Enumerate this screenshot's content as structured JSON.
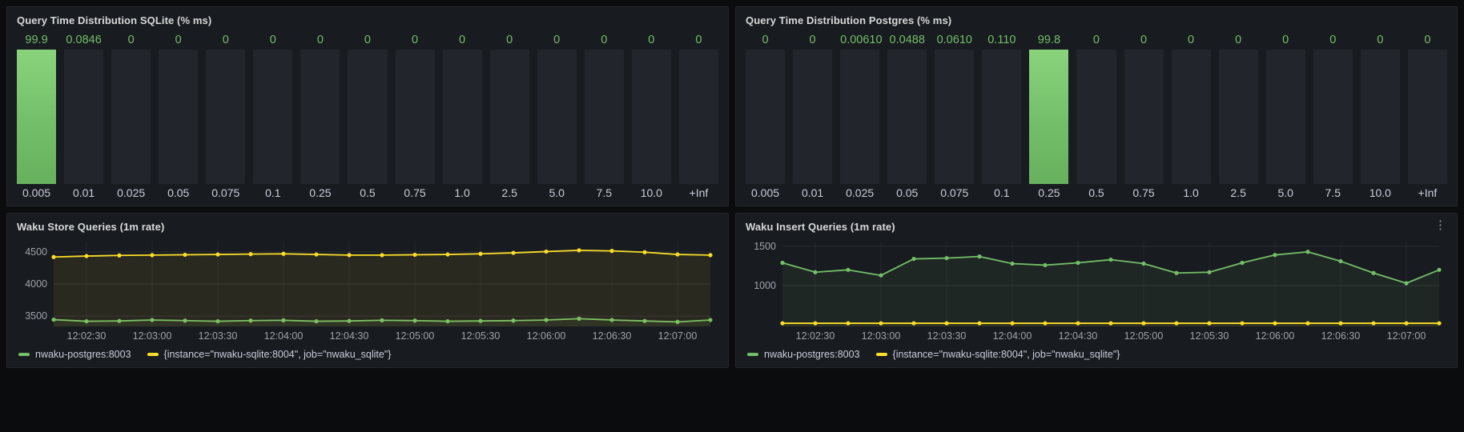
{
  "icons": {
    "kebab": "⋮"
  },
  "colors": {
    "green": "#73bf69",
    "yellow": "#fade2a",
    "page_bg": "#0b0c0e",
    "panel_bg": "#181b1f",
    "panel_border": "#25272e",
    "bar_track": "#22262c",
    "title_text": "#d8d9da",
    "axis_text": "#a0a4ab",
    "value_text": "#73bf69",
    "grid_line_h": "rgba(204,204,220,0.10)",
    "grid_line_v": "rgba(204,204,220,0.06)"
  },
  "chart_data": [
    {
      "id": "sqlite-hist",
      "type": "bar",
      "title": "Query Time Distribution SQLite (% ms)",
      "categories": [
        "0.005",
        "0.01",
        "0.025",
        "0.05",
        "0.075",
        "0.1",
        "0.25",
        "0.5",
        "0.75",
        "1.0",
        "2.5",
        "5.0",
        "7.5",
        "10.0",
        "+Inf"
      ],
      "values": [
        99.9,
        0.0846,
        0,
        0,
        0,
        0,
        0,
        0,
        0,
        0,
        0,
        0,
        0,
        0,
        0
      ],
      "value_labels": [
        "99.9",
        "0.0846",
        "0",
        "0",
        "0",
        "0",
        "0",
        "0",
        "0",
        "0",
        "0",
        "0",
        "0",
        "0",
        "0"
      ],
      "ylim": [
        0,
        100
      ],
      "bar_color": "green"
    },
    {
      "id": "postgres-hist",
      "type": "bar",
      "title": "Query Time Distribution Postgres (% ms)",
      "categories": [
        "0.005",
        "0.01",
        "0.025",
        "0.05",
        "0.075",
        "0.1",
        "0.25",
        "0.5",
        "0.75",
        "1.0",
        "2.5",
        "5.0",
        "7.5",
        "10.0",
        "+Inf"
      ],
      "values": [
        0,
        0,
        0.0061,
        0.0488,
        0.061,
        0.11,
        99.8,
        0,
        0,
        0,
        0,
        0,
        0,
        0,
        0
      ],
      "value_labels": [
        "0",
        "0",
        "0.00610",
        "0.0488",
        "0.0610",
        "0.110",
        "99.8",
        "0",
        "0",
        "0",
        "0",
        "0",
        "0",
        "0",
        "0"
      ],
      "ylim": [
        0,
        100
      ],
      "bar_color": "green"
    },
    {
      "id": "store-ts",
      "type": "line",
      "title": "Waku Store Queries (1m rate)",
      "t_step": 15,
      "x_ticks": [
        {
          "t": 15,
          "label": "12:02:30"
        },
        {
          "t": 45,
          "label": "12:03:00"
        },
        {
          "t": 75,
          "label": "12:03:30"
        },
        {
          "t": 105,
          "label": "12:04:00"
        },
        {
          "t": 135,
          "label": "12:04:30"
        },
        {
          "t": 165,
          "label": "12:05:00"
        },
        {
          "t": 195,
          "label": "12:05:30"
        },
        {
          "t": 225,
          "label": "12:06:00"
        },
        {
          "t": 255,
          "label": "12:06:30"
        },
        {
          "t": 285,
          "label": "12:07:00"
        }
      ],
      "y_ticks": [
        3500,
        4000,
        4500
      ],
      "ylim": [
        3340,
        4660
      ],
      "legend_position": "bottom",
      "series": [
        {
          "name": "nwaku-postgres:8003",
          "color": "green",
          "values": [
            3445,
            3420,
            3425,
            3440,
            3430,
            3420,
            3430,
            3435,
            3420,
            3425,
            3435,
            3430,
            3420,
            3425,
            3430,
            3440,
            3460,
            3440,
            3425,
            3410,
            3440
          ]
        },
        {
          "name": "{instance=\"nwaku-sqlite:8004\", job=\"nwaku_sqlite\"}",
          "color": "yellow",
          "values": [
            4420,
            4435,
            4445,
            4450,
            4455,
            4460,
            4465,
            4470,
            4460,
            4450,
            4450,
            4455,
            4460,
            4470,
            4485,
            4505,
            4525,
            4515,
            4495,
            4460,
            4450
          ]
        }
      ]
    },
    {
      "id": "insert-ts",
      "type": "line",
      "title": "Waku Insert Queries (1m rate)",
      "t_step": 15,
      "x_ticks": [
        {
          "t": 15,
          "label": "12:02:30"
        },
        {
          "t": 45,
          "label": "12:03:00"
        },
        {
          "t": 75,
          "label": "12:03:30"
        },
        {
          "t": 105,
          "label": "12:04:00"
        },
        {
          "t": 135,
          "label": "12:04:30"
        },
        {
          "t": 165,
          "label": "12:05:00"
        },
        {
          "t": 195,
          "label": "12:05:30"
        },
        {
          "t": 225,
          "label": "12:06:00"
        },
        {
          "t": 255,
          "label": "12:06:30"
        },
        {
          "t": 285,
          "label": "12:07:00"
        }
      ],
      "y_ticks": [
        1000,
        1500
      ],
      "ylim": [
        480,
        1560
      ],
      "legend_position": "bottom",
      "series": [
        {
          "name": "nwaku-postgres:8003",
          "color": "green",
          "values": [
            1290,
            1170,
            1200,
            1130,
            1340,
            1350,
            1370,
            1280,
            1260,
            1290,
            1330,
            1280,
            1160,
            1170,
            1290,
            1390,
            1430,
            1310,
            1160,
            1030,
            1200
          ]
        },
        {
          "name": "{instance=\"nwaku-sqlite:8004\", job=\"nwaku_sqlite\"}",
          "color": "yellow",
          "values": [
            520,
            520,
            520,
            520,
            520,
            520,
            520,
            520,
            520,
            520,
            520,
            520,
            520,
            520,
            520,
            520,
            520,
            520,
            520,
            520,
            520
          ]
        }
      ]
    }
  ]
}
